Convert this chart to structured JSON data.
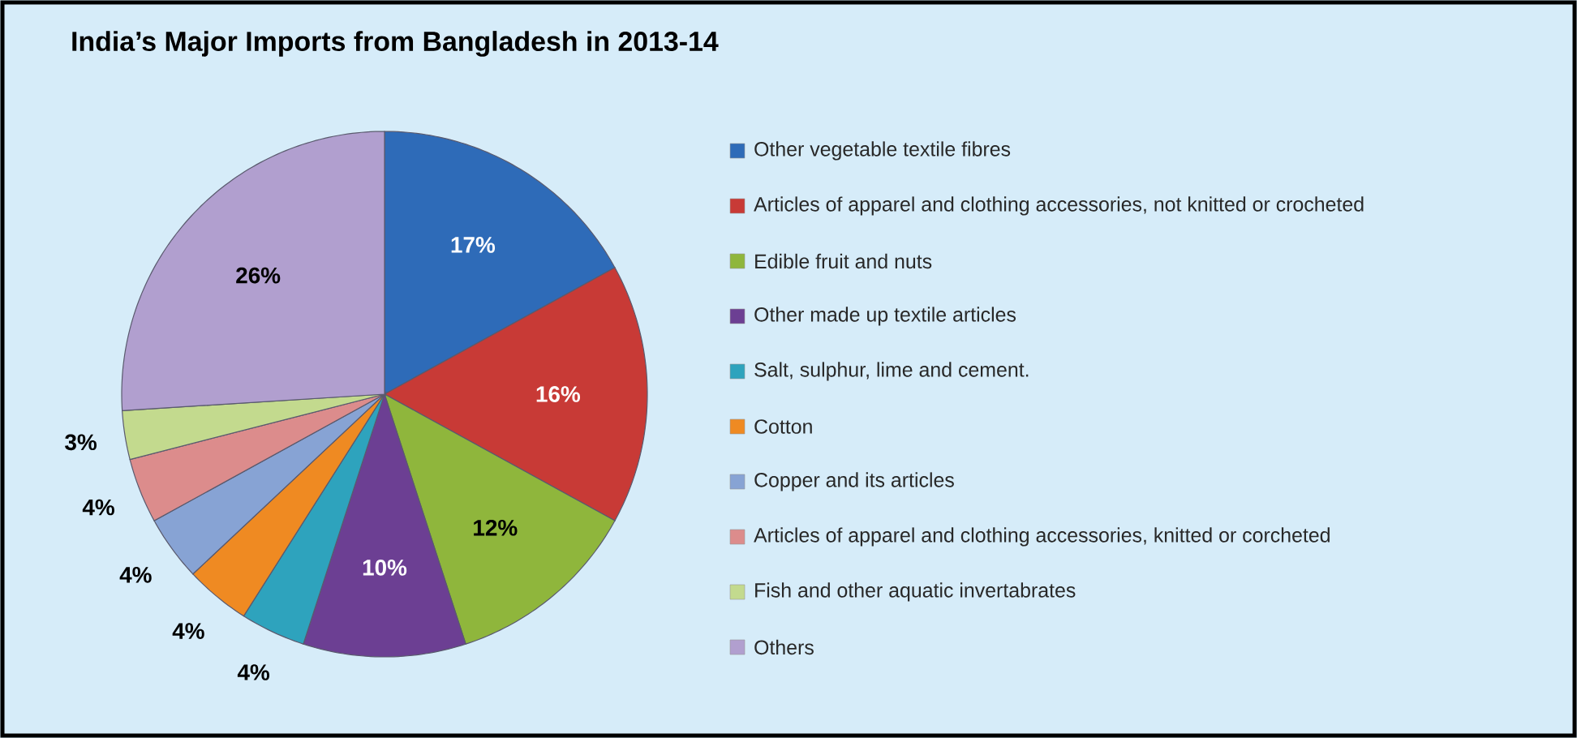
{
  "chart_data": {
    "type": "pie",
    "title": "India’s Major Imports from Bangladesh in 2013-14",
    "categories": [
      "Other vegetable textile fibres",
      "Articles of apparel and clothing accessories, not knitted or crocheted",
      "Edible fruit and nuts",
      "Other made up textile articles",
      "Salt, sulphur, lime and cement.",
      "Cotton",
      "Copper and its articles",
      "Articles of apparel and clothing accessories, knitted or corcheted",
      "Fish and other aquatic invertabrates",
      "Others"
    ],
    "values": [
      17,
      16,
      12,
      10,
      4,
      4,
      4,
      4,
      3,
      26
    ],
    "value_labels": [
      "17%",
      "16%",
      "12%",
      "10%",
      "4%",
      "4%",
      "4%",
      "4%",
      "3%",
      "26%"
    ],
    "colors": [
      "#2e6bb8",
      "#c83a36",
      "#8fb63c",
      "#6c3f93",
      "#2ea3bd",
      "#ef8a22",
      "#87a3d4",
      "#dc8c8c",
      "#c3da8e",
      "#b19fcf"
    ],
    "legend": "right"
  }
}
